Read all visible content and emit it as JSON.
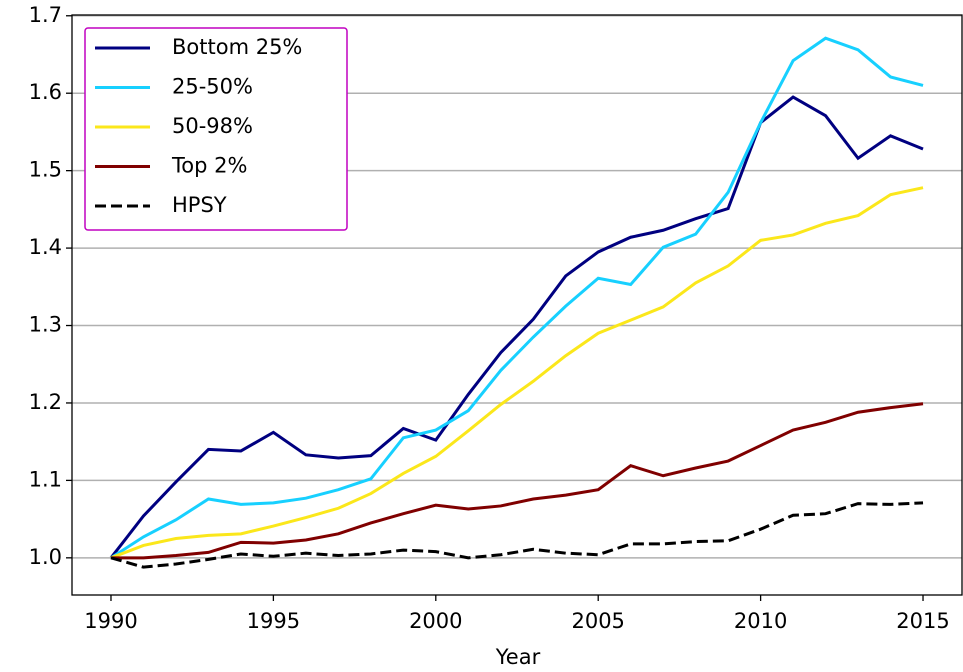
{
  "chart_data": {
    "type": "line",
    "x_label": "Year",
    "x": [
      1990,
      1991,
      1992,
      1993,
      1994,
      1995,
      1996,
      1997,
      1998,
      1999,
      2000,
      2001,
      2002,
      2003,
      2004,
      2005,
      2006,
      2007,
      2008,
      2009,
      2010,
      2011,
      2012,
      2013,
      2014,
      2015
    ],
    "series": [
      {
        "name": "Bottom 25%",
        "color": "#000080",
        "values": [
          1.0,
          1.054,
          1.098,
          1.14,
          1.138,
          1.162,
          1.133,
          1.129,
          1.132,
          1.167,
          1.152,
          1.211,
          1.265,
          1.308,
          1.364,
          1.395,
          1.414,
          1.423,
          1.438,
          1.451,
          1.562,
          1.595,
          1.571,
          1.516,
          1.545,
          1.528
        ]
      },
      {
        "name": "25-50%",
        "color": "#17d0ff",
        "values": [
          1.0,
          1.027,
          1.049,
          1.076,
          1.069,
          1.071,
          1.077,
          1.088,
          1.102,
          1.155,
          1.165,
          1.19,
          1.242,
          1.285,
          1.325,
          1.361,
          1.353,
          1.401,
          1.418,
          1.472,
          1.562,
          1.642,
          1.671,
          1.656,
          1.621,
          1.61
        ]
      },
      {
        "name": "50-98%",
        "color": "#fbe71b",
        "values": [
          1.0,
          1.016,
          1.025,
          1.029,
          1.031,
          1.041,
          1.052,
          1.064,
          1.083,
          1.109,
          1.131,
          1.164,
          1.198,
          1.228,
          1.261,
          1.29,
          1.307,
          1.324,
          1.355,
          1.377,
          1.41,
          1.417,
          1.432,
          1.442,
          1.469,
          1.478
        ]
      },
      {
        "name": "Top 2%",
        "color": "#800000",
        "values": [
          1.0,
          1.0,
          1.003,
          1.007,
          1.02,
          1.019,
          1.023,
          1.031,
          1.045,
          1.057,
          1.068,
          1.063,
          1.067,
          1.076,
          1.081,
          1.088,
          1.119,
          1.106,
          1.116,
          1.125,
          1.145,
          1.165,
          1.175,
          1.188,
          1.194,
          1.199
        ]
      },
      {
        "name": "HPSY",
        "color": "#000000",
        "linestyle": "dashed",
        "values": [
          1.0,
          0.988,
          0.992,
          0.998,
          1.005,
          1.002,
          1.006,
          1.003,
          1.005,
          1.01,
          1.008,
          1.0,
          1.004,
          1.011,
          1.006,
          1.004,
          1.018,
          1.018,
          1.021,
          1.022,
          1.037,
          1.055,
          1.057,
          1.07,
          1.069,
          1.071
        ]
      }
    ],
    "xlim": [
      1988.8,
      2016.2
    ],
    "xticks": [
      1990,
      1995,
      2000,
      2005,
      2010,
      2015
    ],
    "ylim": [
      0.952,
      1.701
    ],
    "yticks": [
      {
        "value": 1,
        "label": "1.0"
      },
      1.1,
      1.2,
      1.3,
      1.4,
      1.5,
      1.6,
      1.7
    ],
    "grid": "y",
    "legend": "upper left",
    "legend_border_color": "#c000c0"
  }
}
